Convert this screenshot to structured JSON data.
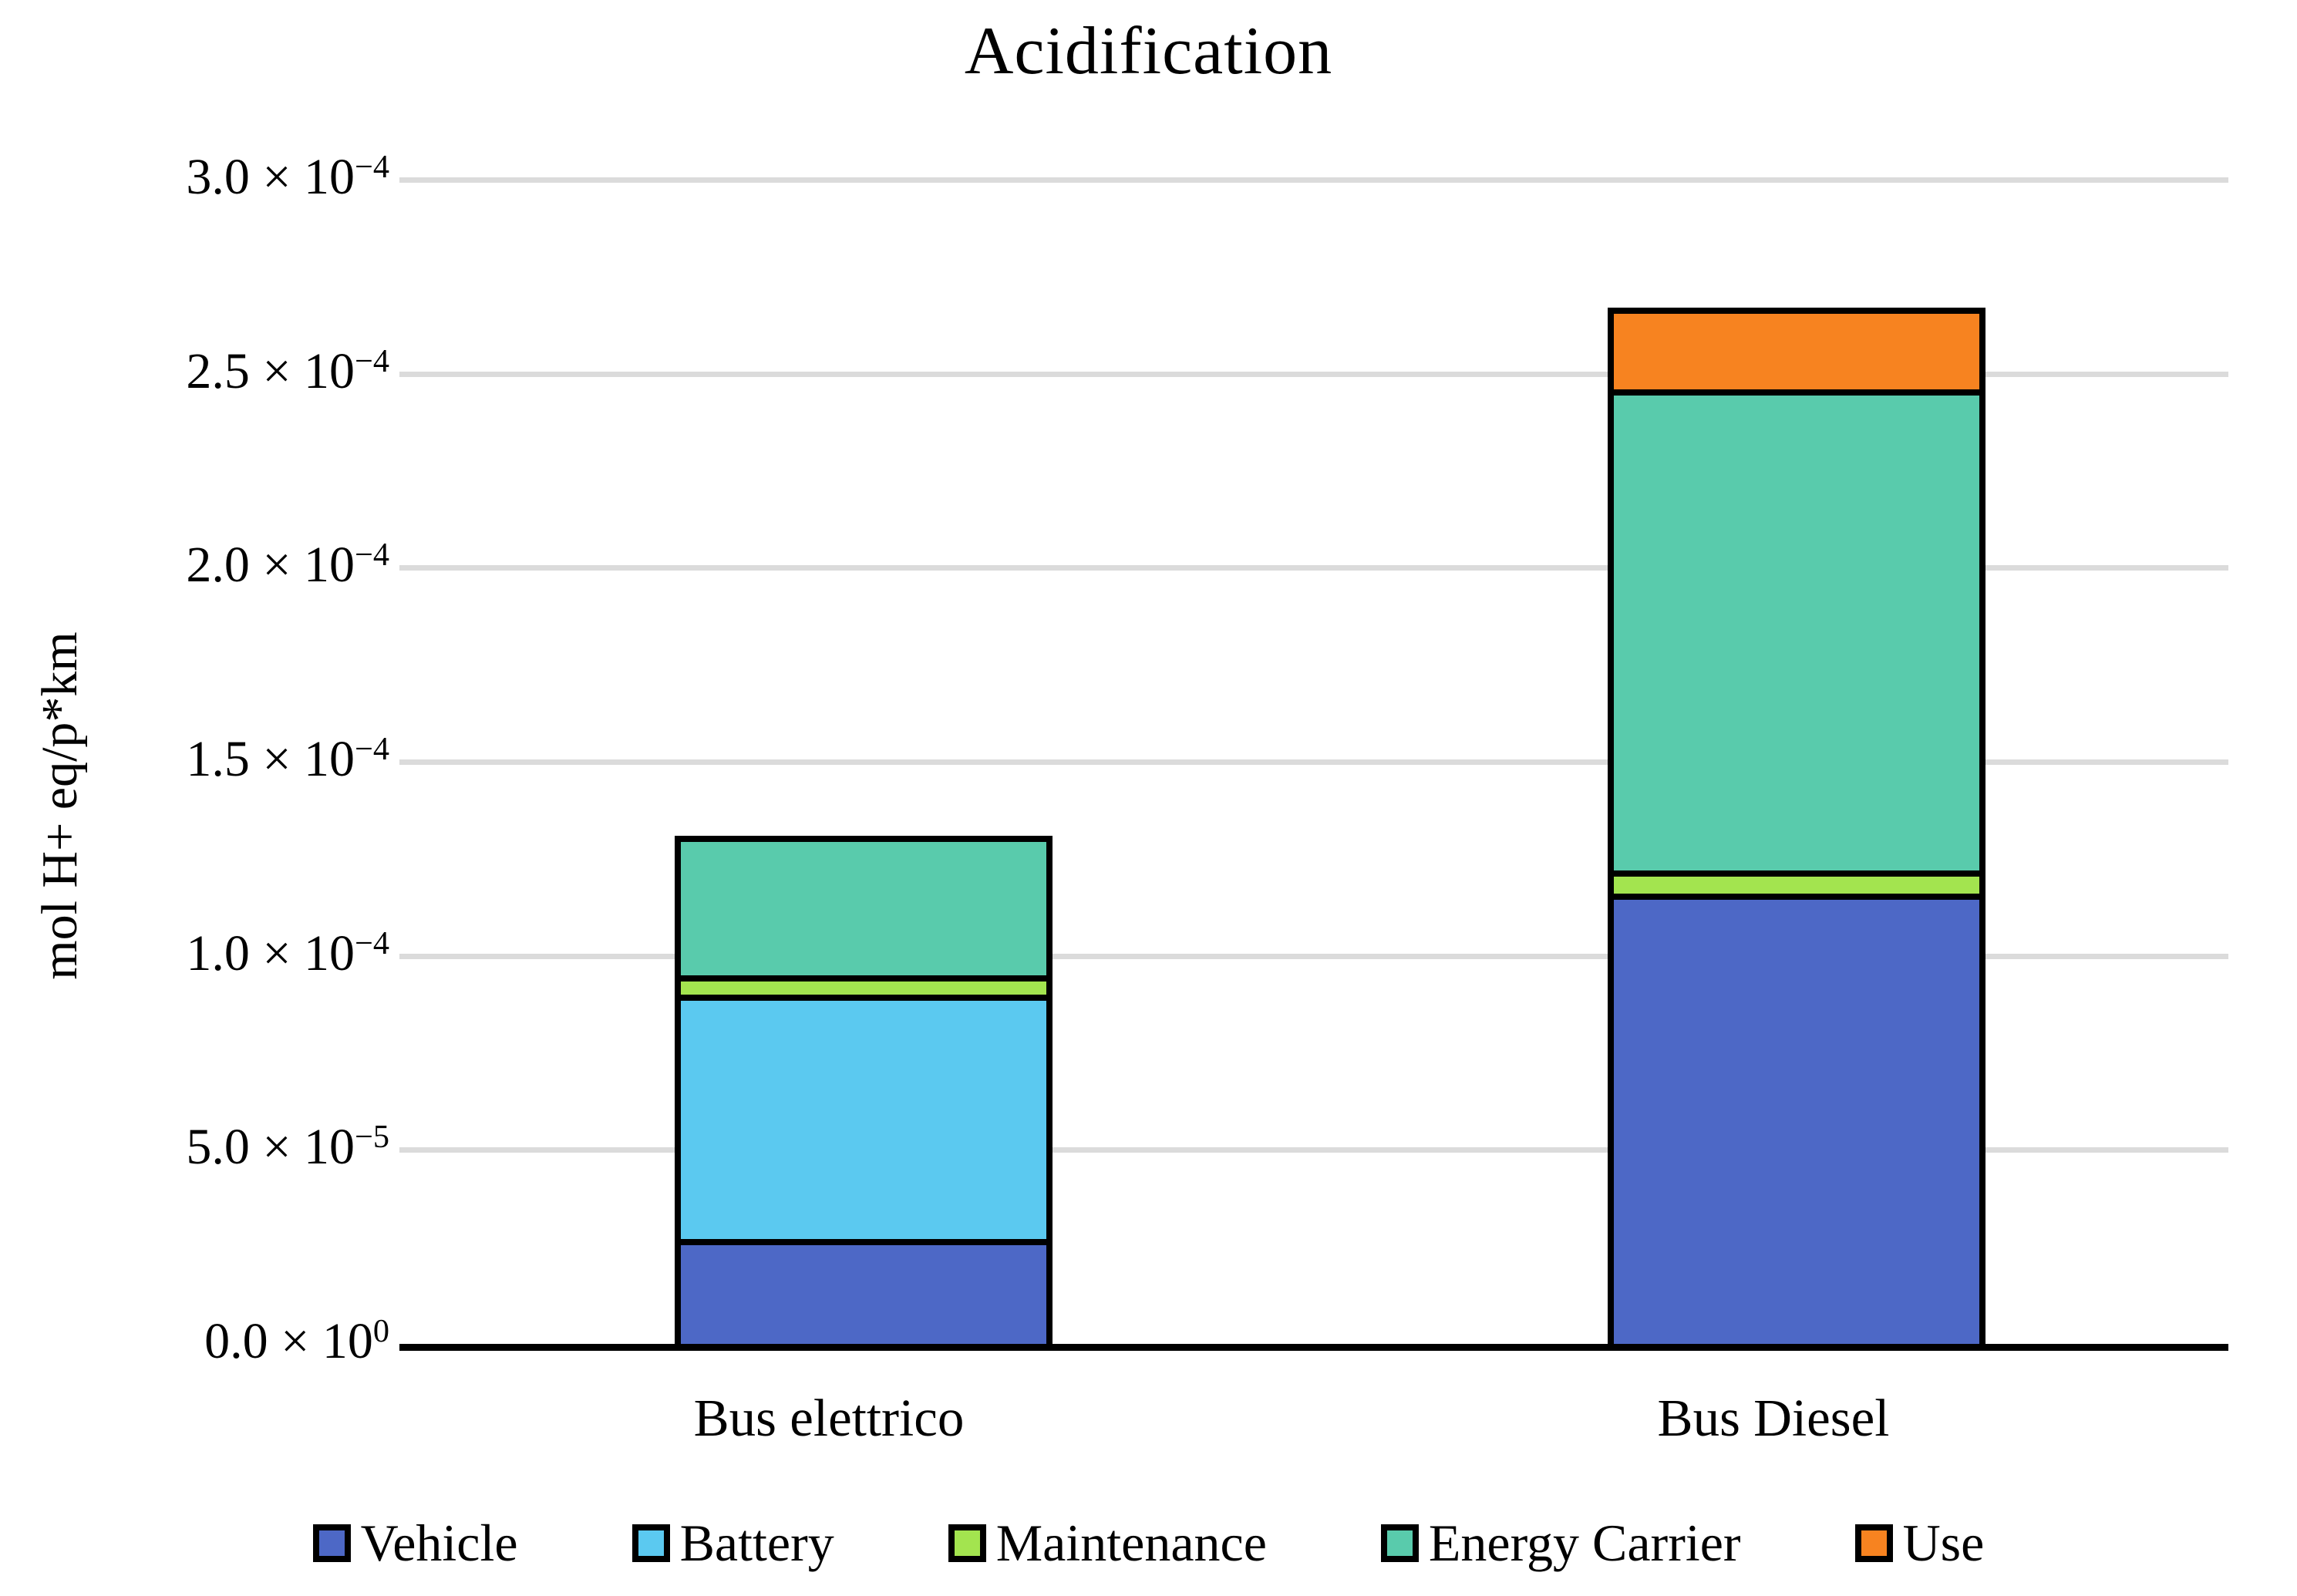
{
  "title": "Acidification",
  "y_axis": {
    "label": "mol H+ eq/p*km",
    "ticks": [
      {
        "base": "0.0 × 10",
        "sup": "0",
        "value": 0
      },
      {
        "base": "5.0 × 10",
        "sup": "−5",
        "value": 5e-05
      },
      {
        "base": "1.0 × 10",
        "sup": "−4",
        "value": 0.0001
      },
      {
        "base": "1.5 × 10",
        "sup": "−4",
        "value": 0.00015
      },
      {
        "base": "2.0 × 10",
        "sup": "−4",
        "value": 0.0002
      },
      {
        "base": "2.5 × 10",
        "sup": "−4",
        "value": 0.00025
      },
      {
        "base": "3.0 × 10",
        "sup": "−4",
        "value": 0.0003
      }
    ]
  },
  "legend": [
    {
      "label": "Vehicle",
      "color": "#4d68c6"
    },
    {
      "label": "Battery",
      "color": "#5bc9f0"
    },
    {
      "label": "Maintenance",
      "color": "#a3e44f"
    },
    {
      "label": "Energy Carrier",
      "color": "#59cbac"
    },
    {
      "label": "Use",
      "color": "#f78320"
    }
  ],
  "chart_data": {
    "type": "bar",
    "stacked": true,
    "title": "Acidification",
    "xlabel": "",
    "ylabel": "mol H+ eq/p*km",
    "ylim": [
      0,
      0.0003
    ],
    "grid": "horizontal",
    "legend_position": "bottom",
    "categories": [
      "Bus elettrico",
      "Bus Diesel"
    ],
    "series": [
      {
        "name": "Vehicle",
        "color": "#4d68c6",
        "values": [
          2.7e-05,
          0.000116
        ]
      },
      {
        "name": "Battery",
        "color": "#5bc9f0",
        "values": [
          6.3e-05,
          0
        ]
      },
      {
        "name": "Maintenance",
        "color": "#a3e44f",
        "values": [
          5e-06,
          6e-06
        ]
      },
      {
        "name": "Energy Carrier",
        "color": "#59cbac",
        "values": [
          3.6e-05,
          0.000124
        ]
      },
      {
        "name": "Use",
        "color": "#f78320",
        "values": [
          0,
          2.1e-05
        ]
      }
    ],
    "totals": [
      0.000131,
      0.000266
    ],
    "gridline_values": [
      5e-05,
      0.0001,
      0.00015,
      0.0002,
      0.00025,
      0.0003
    ]
  }
}
